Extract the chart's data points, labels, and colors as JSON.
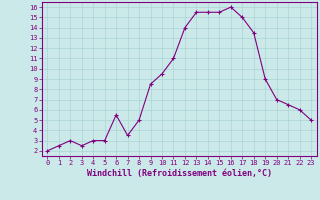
{
  "x": [
    0,
    1,
    2,
    3,
    4,
    5,
    6,
    7,
    8,
    9,
    10,
    11,
    12,
    13,
    14,
    15,
    16,
    17,
    18,
    19,
    20,
    21,
    22,
    23
  ],
  "y": [
    2,
    2.5,
    3,
    2.5,
    3,
    3,
    5.5,
    3.5,
    5,
    8.5,
    9.5,
    11,
    14,
    15.5,
    15.5,
    15.5,
    16,
    15,
    13.5,
    9,
    7,
    6.5,
    6,
    5
  ],
  "line_color": "#800080",
  "marker": "+",
  "bg_color": "#cce9e9",
  "grid_color": "#aad4d4",
  "xlabel": "Windchill (Refroidissement éolien,°C)",
  "xlim": [
    -0.5,
    23.5
  ],
  "ylim": [
    1.5,
    16.5
  ],
  "yticks": [
    2,
    3,
    4,
    5,
    6,
    7,
    8,
    9,
    10,
    11,
    12,
    13,
    14,
    15,
    16
  ],
  "xticks": [
    0,
    1,
    2,
    3,
    4,
    5,
    6,
    7,
    8,
    9,
    10,
    11,
    12,
    13,
    14,
    15,
    16,
    17,
    18,
    19,
    20,
    21,
    22,
    23
  ],
  "tick_color": "#800080",
  "label_color": "#800080",
  "spine_color": "#800080",
  "tick_fontsize": 5,
  "xlabel_fontsize": 6
}
